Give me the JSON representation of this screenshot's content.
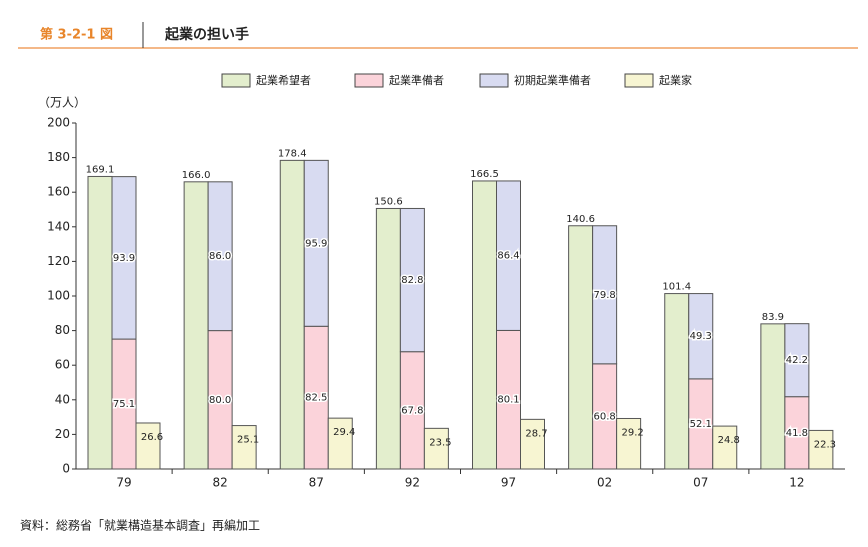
{
  "chart_data": {
    "type": "grouped-stacked-bar",
    "figure_label": "第 3-2-1 図",
    "title": "起業の担い手",
    "ylabel": "（万人）",
    "source": "資料：総務省「就業構造基本調査」再編加工",
    "categories": [
      "79",
      "82",
      "87",
      "92",
      "97",
      "02",
      "07",
      "12"
    ],
    "series": [
      {
        "name": "起業希望者",
        "color": "#e3eecd",
        "values": [
          169.1,
          166.0,
          178.4,
          150.6,
          166.5,
          140.6,
          101.4,
          83.9
        ],
        "value_labels": [
          "169.1",
          "166.0",
          "178.4",
          "150.6",
          "166.5",
          "140.6",
          "101.4",
          "83.9"
        ]
      },
      {
        "name": "起業準備者",
        "color": "#fbd3da",
        "stack": true,
        "values": [
          75.1,
          80.0,
          82.5,
          67.8,
          80.1,
          60.8,
          52.1,
          41.8
        ],
        "value_labels": [
          "75.1",
          "80.0",
          "82.5",
          "67.8",
          "80.1",
          "60.8",
          "52.1",
          "41.8"
        ]
      },
      {
        "name": "初期起業準備者",
        "color": "#d8dbf1",
        "stack": true,
        "values": [
          93.9,
          86.0,
          95.9,
          82.8,
          86.4,
          79.8,
          49.3,
          42.2
        ],
        "value_labels": [
          "93.9",
          "86.0",
          "95.9",
          "82.8",
          "86.4",
          "79.8",
          "49.3",
          "42.2"
        ]
      },
      {
        "name": "起業家",
        "color": "#f7f5d2",
        "values": [
          26.6,
          25.1,
          29.4,
          23.5,
          28.7,
          29.2,
          24.8,
          22.3
        ],
        "value_labels": [
          "26.6",
          "25.1",
          "29.4",
          "23.5",
          "28.7",
          "29.2",
          "24.8",
          "22.3"
        ]
      }
    ],
    "ylim": [
      0,
      200
    ],
    "yticks": [
      0,
      20,
      40,
      60,
      80,
      100,
      120,
      140,
      160,
      180,
      200
    ]
  }
}
